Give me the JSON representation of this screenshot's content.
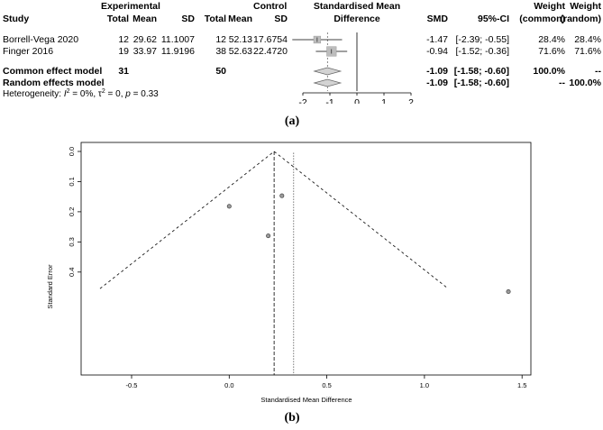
{
  "panel_a": {
    "headers": {
      "study": "Study",
      "experimental": "Experimental",
      "control": "Control",
      "total": "Total",
      "mean": "Mean",
      "sd": "SD",
      "smd_title_1": "Standardised Mean",
      "smd_title_2": "Difference",
      "smd": "SMD",
      "ci": "95%-CI",
      "weight": "Weight",
      "common": "(common)",
      "random": "(random)"
    },
    "studies": [
      {
        "name": "Borrell-Vega 2020",
        "e_total": "12",
        "e_mean": "29.62",
        "e_sd": "11.1007",
        "c_total": "12",
        "c_mean": "52.13",
        "c_sd": "17.6754",
        "smd_text": "-1.47",
        "ci_text": "[-2.39; -0.55]",
        "w_common": "28.4%",
        "w_random": "28.4%"
      },
      {
        "name": "Finger 2016",
        "e_total": "19",
        "e_mean": "33.97",
        "e_sd": "11.9196",
        "c_total": "38",
        "c_mean": "52.63",
        "c_sd": "22.4720",
        "smd_text": "-0.94",
        "ci_text": "[-1.52; -0.36]",
        "w_common": "71.6%",
        "w_random": "71.6%"
      }
    ],
    "common_model": {
      "label": "Common effect model",
      "e_total": "31",
      "c_total": "50",
      "smd_text": "-1.09",
      "ci_text": "[-1.58; -0.60]",
      "w_common": "100.0%",
      "w_random": "--"
    },
    "random_model": {
      "label": "Random effects model",
      "smd_text": "-1.09",
      "ci_text": "[-1.58; -0.60]",
      "w_common": "--",
      "w_random": "100.0%"
    },
    "heterogeneity": {
      "prefix": "Heterogeneity: ",
      "i_sym": "I",
      "sup2": "2",
      "i_val": " = 0%, ",
      "tau_sym": "τ",
      "tau_val": " = 0, ",
      "p_sym": "p",
      "p_val": " = 0.33"
    },
    "caption": "(a)"
  },
  "chart_data": [
    {
      "type": "forest",
      "axis_ticks": [
        "-2",
        "-1",
        "0",
        "1",
        "2"
      ],
      "xlim": [
        -2,
        2
      ],
      "studies": [
        {
          "smd": -1.47,
          "ci": [
            -2.39,
            -0.55
          ],
          "weight": 28.4
        },
        {
          "smd": -0.94,
          "ci": [
            -1.52,
            -0.36
          ],
          "weight": 71.6
        }
      ],
      "pooled": {
        "smd": -1.09,
        "ci": [
          -1.58,
          -0.6
        ]
      }
    },
    {
      "type": "scatter",
      "xlabel": "Standardised Mean Difference",
      "ylabel": "Standard Error",
      "x_ticks": [
        "-0.5",
        "0.0",
        "0.5",
        "1.0",
        "1.5"
      ],
      "y_ticks": [
        "0.0",
        "0.1",
        "0.2",
        "0.3",
        "0.4"
      ],
      "xlim": [
        -0.75,
        1.5
      ],
      "ylim": [
        0,
        0.47
      ],
      "y_reversed": true,
      "points": [
        {
          "x": 0.0,
          "y": 0.182
        },
        {
          "x": 0.2,
          "y": 0.28
        },
        {
          "x": 0.27,
          "y": 0.147
        },
        {
          "x": 1.43,
          "y": 0.465
        }
      ],
      "pooled_estimate": 0.23,
      "random_estimate": 0.33,
      "caption": "(b)"
    }
  ]
}
